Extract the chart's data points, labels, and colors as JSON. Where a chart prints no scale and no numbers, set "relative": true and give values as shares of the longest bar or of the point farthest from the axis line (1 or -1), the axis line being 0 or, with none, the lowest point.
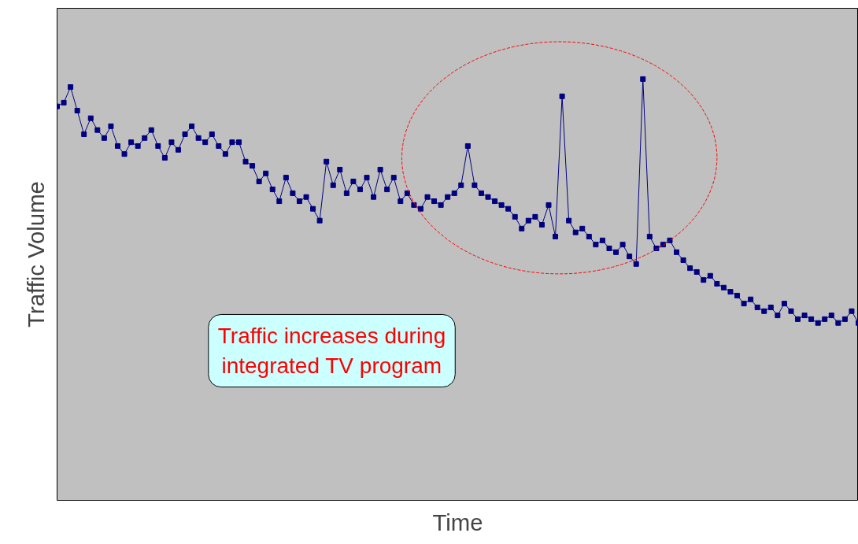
{
  "chart_data": {
    "type": "line",
    "relative": true,
    "xlabel": "Time",
    "ylabel": "Traffic Volume",
    "marker": "square",
    "grid": false,
    "categories": [
      null,
      null,
      null,
      null,
      null,
      null,
      null,
      null,
      null,
      null,
      null,
      null,
      null,
      null,
      null,
      null,
      null,
      null,
      null,
      null,
      null,
      null,
      null,
      null,
      null,
      null,
      null,
      null,
      null,
      null,
      null,
      null,
      null,
      null,
      null,
      null,
      null,
      null,
      null,
      null,
      null,
      null,
      null,
      null,
      null,
      null,
      null,
      null,
      null,
      null,
      null,
      null,
      null,
      null,
      null,
      null,
      null,
      null,
      null,
      null,
      null,
      null,
      null,
      null,
      null,
      null,
      null,
      null,
      null,
      null,
      null,
      null,
      null,
      null,
      null,
      null,
      null,
      null,
      null,
      null,
      null,
      null,
      null,
      null,
      null,
      null,
      null,
      null,
      null,
      null,
      null,
      null,
      null,
      null,
      null,
      null,
      null,
      null,
      null,
      null,
      null,
      null,
      null,
      null,
      null,
      null,
      null,
      null,
      null,
      null,
      null,
      null,
      null,
      null,
      null,
      null,
      null,
      null,
      null,
      null
    ],
    "series": [
      {
        "color": "#000080",
        "values": [
          0.935,
          0.944,
          0.981,
          0.925,
          0.869,
          0.907,
          0.879,
          0.86,
          0.888,
          0.841,
          0.822,
          0.85,
          0.841,
          0.86,
          0.879,
          0.841,
          0.813,
          0.85,
          0.832,
          0.869,
          0.888,
          0.86,
          0.85,
          0.869,
          0.841,
          0.822,
          0.85,
          0.85,
          0.804,
          0.794,
          0.757,
          0.776,
          0.738,
          0.71,
          0.766,
          0.729,
          0.71,
          0.72,
          0.692,
          0.664,
          0.804,
          0.748,
          0.785,
          0.729,
          0.757,
          0.738,
          0.766,
          0.72,
          0.785,
          0.738,
          0.766,
          0.71,
          0.729,
          0.701,
          0.692,
          0.72,
          0.71,
          0.701,
          0.72,
          0.729,
          0.748,
          0.841,
          0.748,
          0.729,
          0.72,
          0.71,
          0.701,
          0.692,
          0.673,
          0.645,
          0.664,
          0.673,
          0.654,
          0.701,
          0.626,
          0.959,
          0.664,
          0.636,
          0.645,
          0.626,
          0.607,
          0.617,
          0.598,
          0.589,
          0.607,
          0.579,
          0.561,
          1,
          0.626,
          0.598,
          0.607,
          0.617,
          0.589,
          0.57,
          0.551,
          0.542,
          0.523,
          0.533,
          0.514,
          0.505,
          0.495,
          0.486,
          0.467,
          0.477,
          0.458,
          0.449,
          0.458,
          0.439,
          0.467,
          0.449,
          0.43,
          0.439,
          0.43,
          0.421,
          0.43,
          0.439,
          0.421,
          0.43,
          0.449,
          0.421
        ]
      }
    ],
    "annotations": [
      "Traffic increases during\nintegrated TV program"
    ]
  }
}
